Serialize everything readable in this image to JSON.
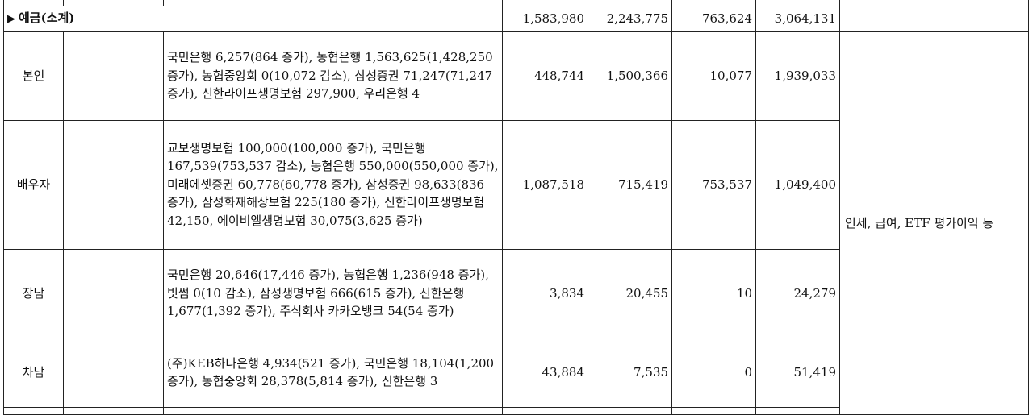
{
  "subtotal": {
    "label": "예금(소계)",
    "values": [
      "1,583,980",
      "2,243,775",
      "763,624",
      "3,064,131"
    ]
  },
  "rows": [
    {
      "relation": "본인",
      "description": "국민은행 6,257(864 증가), 농협은행 1,563,625(1,428,250 증가), 농협중앙회 0(10,072 감소), 삼성증권 71,247(71,247 증가), 신한라이프생명보험 297,900, 우리은행 4",
      "values": [
        "448,744",
        "1,500,366",
        "10,077",
        "1,939,033"
      ]
    },
    {
      "relation": "배우자",
      "description": "교보생명보험 100,000(100,000 증가), 국민은행 167,539(753,537 감소), 농협은행 550,000(550,000 증가), 미래에셋증권 60,778(60,778 증가), 삼성증권 98,633(836 증가), 삼성화재해상보험 225(180 증가), 신한라이프생명보험 42,150, 에이비엘생명보험 30,075(3,625 증가)",
      "values": [
        "1,087,518",
        "715,419",
        "753,537",
        "1,049,400"
      ]
    },
    {
      "relation": "장남",
      "description": "국민은행 20,646(17,446 증가), 농협은행 1,236(948 증가), 빗썸 0(10 감소), 삼성생명보험 666(615 증가), 신한은행 1,677(1,392 증가), 주식회사 카카오뱅크 54(54 증가)",
      "values": [
        "3,834",
        "20,455",
        "10",
        "24,279"
      ]
    },
    {
      "relation": "차남",
      "description": "(주)KEB하나은행 4,934(521 증가), 국민은행 18,104(1,200 증가), 농협중앙회 28,378(5,814 증가), 신한은행 3",
      "values": [
        "43,884",
        "7,535",
        "0",
        "51,419"
      ]
    }
  ],
  "note": "인세, 급여, ETF 평가이익 등"
}
